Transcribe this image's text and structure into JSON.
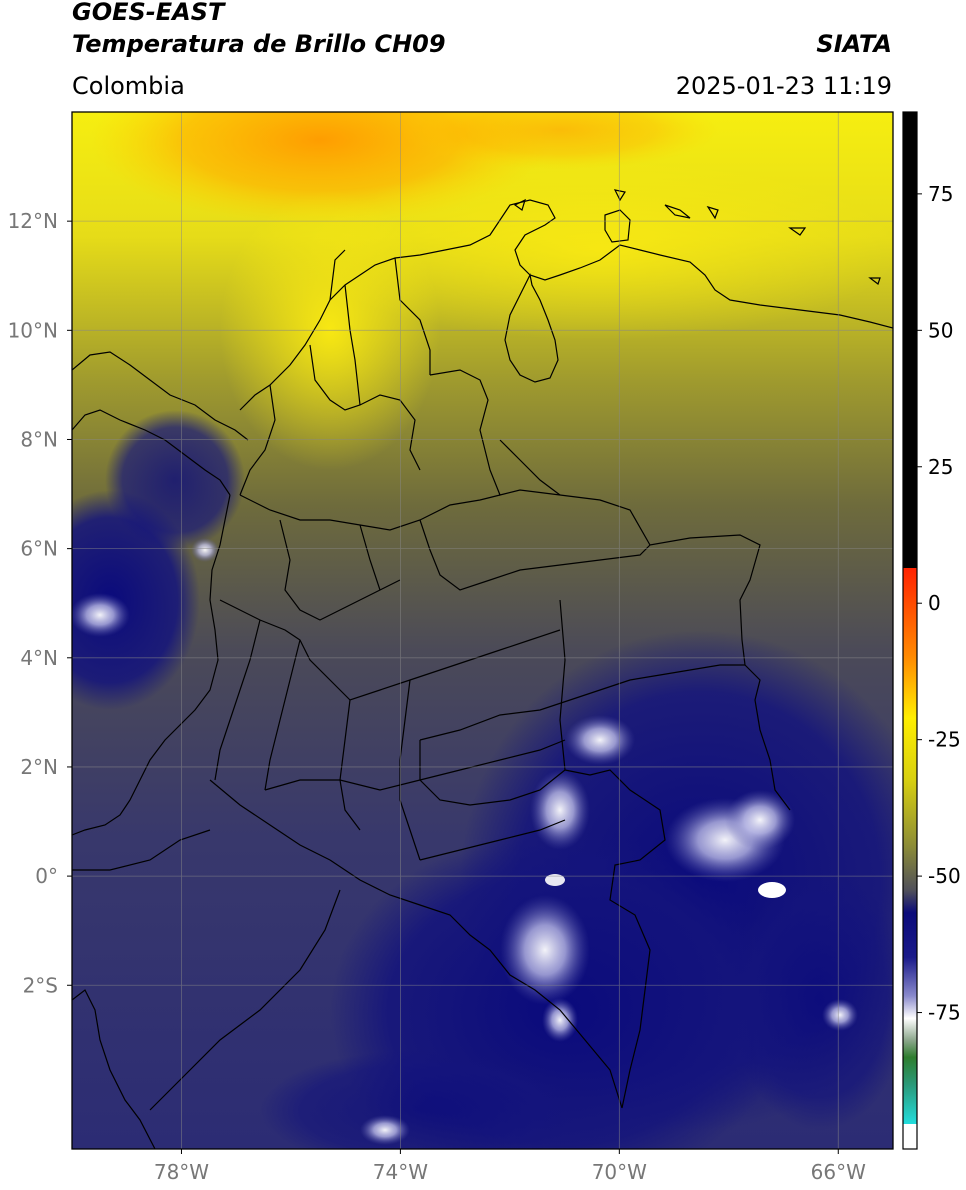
{
  "header": {
    "title_line1": "GOES-EAST",
    "title_line2": "Temperatura de Brillo CH09",
    "brand": "SIATA",
    "region": "Colombia",
    "timestamp": "2025-01-23 11:19"
  },
  "map": {
    "lon_range": [
      -80,
      -65
    ],
    "lat_range": [
      -5,
      14
    ],
    "lon_ticks": [
      {
        "value": -78,
        "label": "78°W"
      },
      {
        "value": -74,
        "label": "74°W"
      },
      {
        "value": -70,
        "label": "70°W"
      },
      {
        "value": -66,
        "label": "66°W"
      }
    ],
    "lat_ticks": [
      {
        "value": 12,
        "label": "12°N"
      },
      {
        "value": 10,
        "label": "10°N"
      },
      {
        "value": 8,
        "label": "8°N"
      },
      {
        "value": 6,
        "label": "6°N"
      },
      {
        "value": 4,
        "label": "4°N"
      },
      {
        "value": 2,
        "label": "2°N"
      },
      {
        "value": 0,
        "label": "0°"
      },
      {
        "value": -2,
        "label": "2°S"
      }
    ],
    "grid": true
  },
  "colorbar": {
    "range": [
      -100,
      90
    ],
    "ticks": [
      {
        "value": 75,
        "label": "75"
      },
      {
        "value": 50,
        "label": "50"
      },
      {
        "value": 25,
        "label": "25"
      },
      {
        "value": 0,
        "label": "0"
      },
      {
        "value": -25,
        "label": "-25"
      },
      {
        "value": -50,
        "label": "-50"
      },
      {
        "value": -75,
        "label": "-75"
      }
    ],
    "colors": {
      "top_black": "#000000",
      "red": "#ff2200",
      "orange": "#ff9900",
      "yellow": "#ffee00",
      "olive": "#9a9a2a",
      "gray": "#4a4a55",
      "navy": "#0a0a78",
      "white": "#ffffff",
      "green": "#2e7d2e",
      "cyan": "#22dddd"
    }
  }
}
